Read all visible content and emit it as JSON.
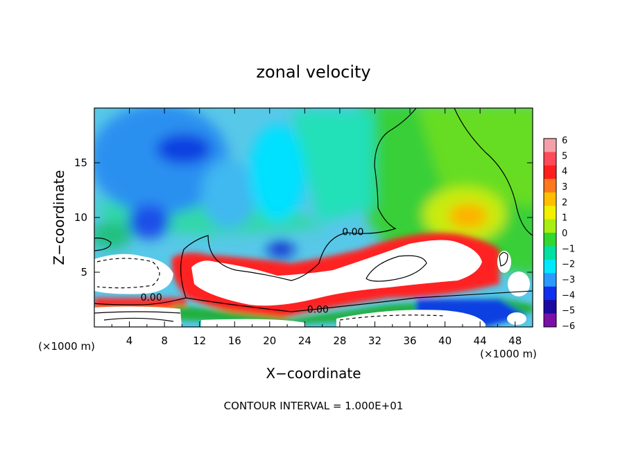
{
  "chart_data": {
    "type": "heatmap",
    "title": "zonal velocity",
    "xlabel": "X−coordinate",
    "ylabel": "Z−coordinate",
    "x_unit_left": "(×1000 m)",
    "x_unit_right": "(×1000 m)",
    "xlim": [
      0,
      50
    ],
    "ylim": [
      0,
      20
    ],
    "x_ticks": [
      4,
      8,
      12,
      16,
      20,
      24,
      28,
      32,
      36,
      40,
      44,
      48
    ],
    "x_tick_labels": [
      "4",
      "8",
      "12",
      "16",
      "20",
      "24",
      "28",
      "32",
      "36",
      "40",
      "44",
      "48"
    ],
    "y_ticks": [
      5,
      10,
      15
    ],
    "y_tick_labels": [
      "5",
      "10",
      "15"
    ],
    "colorbar": {
      "range": [
        -6,
        6
      ],
      "labels": [
        "6",
        "5",
        "4",
        "3",
        "2",
        "1",
        "0",
        "−1",
        "−2",
        "−3",
        "−4",
        "−5",
        "−6"
      ],
      "colors": [
        "#f5a0a8",
        "#ff4a5a",
        "#ff1e1e",
        "#ff7820",
        "#ffbe00",
        "#f0f000",
        "#a8ee10",
        "#30d830",
        "#00e0a0",
        "#00e8ff",
        "#2a9aff",
        "#1030ee",
        "#1a0aa0",
        "#7a10a8"
      ]
    },
    "contour_labels": [
      {
        "text": "0.00",
        "x": 29.5,
        "z": 8.4
      },
      {
        "text": "0.00",
        "x": 6.5,
        "z": 2.4
      },
      {
        "text": "0.00",
        "x": 25.5,
        "z": 1.3
      }
    ],
    "contour_interval_text": "CONTOUR INTERVAL = 1.000E+01"
  }
}
